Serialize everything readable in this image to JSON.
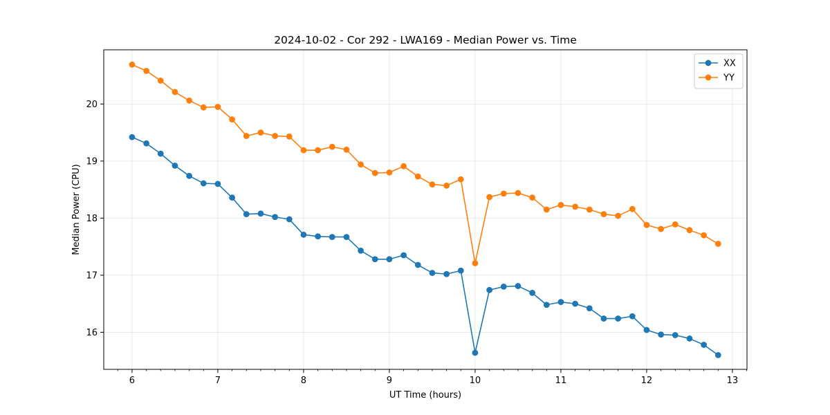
{
  "chart_data": {
    "type": "line",
    "title": "2024-10-02 - Cor 292 - LWA169 - Median Power vs. Time",
    "xlabel": "UT Time (hours)",
    "ylabel": "Median Power (CPU)",
    "xlim": [
      5.67,
      13.17
    ],
    "ylim": [
      15.35,
      20.95
    ],
    "xticks": [
      6,
      7,
      8,
      9,
      10,
      11,
      12,
      13
    ],
    "yticks": [
      16,
      17,
      18,
      19,
      20
    ],
    "grid": true,
    "legend_position": "top-right",
    "series": [
      {
        "name": "XX",
        "color": "#1f77b4",
        "x": [
          6.0,
          6.1667,
          6.3333,
          6.5,
          6.6667,
          6.8333,
          7.0,
          7.1667,
          7.3333,
          7.5,
          7.6667,
          7.8333,
          8.0,
          8.1667,
          8.3333,
          8.5,
          8.6667,
          8.8333,
          9.0,
          9.1667,
          9.3333,
          9.5,
          9.6667,
          9.8333,
          10.0,
          10.1667,
          10.3333,
          10.5,
          10.6667,
          10.8333,
          11.0,
          11.1667,
          11.3333,
          11.5,
          11.6667,
          11.8333,
          12.0,
          12.1667,
          12.3333,
          12.5,
          12.6667,
          12.8333
        ],
        "y": [
          19.42,
          19.31,
          19.13,
          18.92,
          18.74,
          18.61,
          18.6,
          18.36,
          18.07,
          18.08,
          18.02,
          17.98,
          17.71,
          17.68,
          17.67,
          17.67,
          17.43,
          17.28,
          17.28,
          17.35,
          17.18,
          17.04,
          17.02,
          17.08,
          15.64,
          16.74,
          16.8,
          16.81,
          16.69,
          16.48,
          16.53,
          16.5,
          16.42,
          16.24,
          16.24,
          16.28,
          16.04,
          15.96,
          15.95,
          15.89,
          15.78,
          15.6
        ]
      },
      {
        "name": "YY",
        "color": "#ff7f0e",
        "x": [
          6.0,
          6.1667,
          6.3333,
          6.5,
          6.6667,
          6.8333,
          7.0,
          7.1667,
          7.3333,
          7.5,
          7.6667,
          7.8333,
          8.0,
          8.1667,
          8.3333,
          8.5,
          8.6667,
          8.8333,
          9.0,
          9.1667,
          9.3333,
          9.5,
          9.6667,
          9.8333,
          10.0,
          10.1667,
          10.3333,
          10.5,
          10.6667,
          10.8333,
          11.0,
          11.1667,
          11.3333,
          11.5,
          11.6667,
          11.8333,
          12.0,
          12.1667,
          12.3333,
          12.5,
          12.6667,
          12.8333
        ],
        "y": [
          20.69,
          20.58,
          20.41,
          20.21,
          20.06,
          19.94,
          19.95,
          19.73,
          19.44,
          19.5,
          19.44,
          19.43,
          19.19,
          19.19,
          19.25,
          19.2,
          18.94,
          18.79,
          18.8,
          18.91,
          18.73,
          18.59,
          18.57,
          18.68,
          17.21,
          18.37,
          18.43,
          18.44,
          18.36,
          18.15,
          18.23,
          18.2,
          18.15,
          18.07,
          18.04,
          18.16,
          17.88,
          17.81,
          17.89,
          17.79,
          17.7,
          17.55
        ]
      }
    ]
  }
}
